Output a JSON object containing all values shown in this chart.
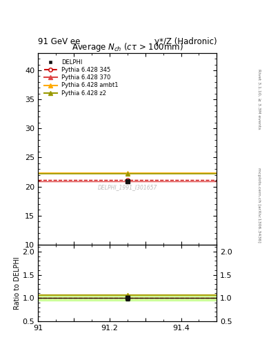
{
  "header_left": "91 GeV ee",
  "header_right": "γ*/Z (Hadronic)",
  "title": "Average N$_{ch}$ (cτ > 100mm)",
  "right_label_top": "Rivet 3.1.10, ≥ 3.3M events",
  "right_label_bottom": "mcplots.cern.ch [arXiv:1306.3436]",
  "watermark": "DELPHI_1991_I301657",
  "ylabel_bottom": "Ratio to DELPHI",
  "x_min": 91.0,
  "x_max": 91.5,
  "y_top_min": 10,
  "y_top_max": 43,
  "y_bottom_min": 0.5,
  "y_bottom_max": 2.15,
  "data_x": [
    91.25
  ],
  "data_y": [
    20.9
  ],
  "data_yerr": [
    0.15
  ],
  "data_label": "DELPHI",
  "data_color": "#111111",
  "lines": [
    {
      "label": "Pythia 6.428 345",
      "y": 21.1,
      "color": "#cc0000",
      "linestyle": "dashed",
      "marker": "o",
      "linewidth": 1.0
    },
    {
      "label": "Pythia 6.428 370",
      "y": 20.95,
      "color": "#dd4444",
      "linestyle": "solid",
      "marker": "^",
      "linewidth": 1.0
    },
    {
      "label": "Pythia 6.428 ambt1",
      "y": 22.35,
      "color": "#ffaa00",
      "linestyle": "solid",
      "marker": "^",
      "linewidth": 1.2
    },
    {
      "label": "Pythia 6.428 z2",
      "y": 22.2,
      "color": "#999900",
      "linestyle": "solid",
      "marker": "^",
      "linewidth": 1.2
    }
  ],
  "ratio_lines": [
    {
      "label": "Pythia 6.428 345",
      "ratio": 1.01,
      "color": "#cc0000",
      "linestyle": "dashed",
      "marker": "o",
      "linewidth": 1.0
    },
    {
      "label": "Pythia 6.428 370",
      "ratio": 1.002,
      "color": "#dd4444",
      "linestyle": "solid",
      "marker": "^",
      "linewidth": 1.0
    },
    {
      "label": "Pythia 6.428 ambt1",
      "ratio": 1.069,
      "color": "#ffaa00",
      "linestyle": "solid",
      "marker": "^",
      "linewidth": 1.2
    },
    {
      "label": "Pythia 6.428 z2",
      "ratio": 1.062,
      "color": "#999900",
      "linestyle": "solid",
      "marker": "^",
      "linewidth": 1.2
    }
  ],
  "data_ratio_band_color": "#ccff99",
  "data_ratio_band_half": 0.05,
  "xticks": [
    91.0,
    91.1,
    91.2,
    91.3,
    91.4,
    91.5
  ],
  "xtick_labels": [
    "91",
    "91.2",
    "91.4"
  ],
  "yticks_top": [
    10,
    15,
    20,
    25,
    30,
    35,
    40
  ],
  "yticks_bottom": [
    0.5,
    1.0,
    1.5,
    2.0
  ],
  "marker_x": 91.25
}
